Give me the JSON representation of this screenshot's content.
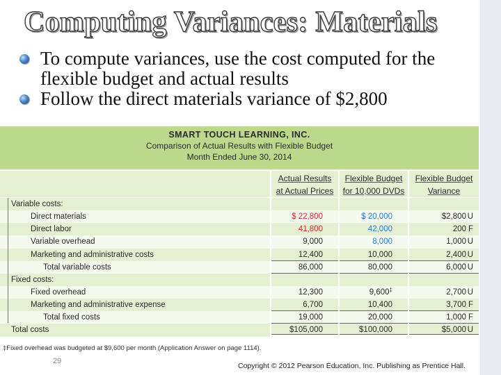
{
  "slide": {
    "title": "Computing Variances: Materials",
    "bullets": [
      "To compute variances, use the cost computed for the flexible budget and actual results",
      "Follow the direct materials variance of $2,800"
    ],
    "page_number": "29",
    "copyright": "Copyright © 2012 Pearson Education, Inc. Publishing as Prentice Hall."
  },
  "exhibit": {
    "company": "SMART TOUCH LEARNING, INC.",
    "report_title": "Comparison of Actual Results with Flexible Budget",
    "period": "Month Ended June 30, 2014",
    "columns": [
      {
        "line1": "Actual Results",
        "line2": "at Actual Prices"
      },
      {
        "line1": "Flexible Budget",
        "line2": "for 10,000 DVDs"
      },
      {
        "line1": "Flexible Budget",
        "line2": "Variance"
      }
    ],
    "rows": [
      {
        "label": "Variable costs:",
        "actual": "",
        "flex": "",
        "variance": "",
        "fu": ""
      },
      {
        "label": "Direct materials",
        "actual": "$ 22,800",
        "flex": "$ 20,000",
        "variance": "$2,800",
        "fu": "U"
      },
      {
        "label": "Direct labor",
        "actual": "41,800",
        "flex": "42,000",
        "variance": "200",
        "fu": "F"
      },
      {
        "label": "Variable overhead",
        "actual": "9,000",
        "flex": "8,000",
        "variance": "1,000",
        "fu": "U"
      },
      {
        "label": "Marketing and administrative costs",
        "actual": "12,400",
        "flex": "10,000",
        "variance": "2,400",
        "fu": "U"
      },
      {
        "label": "Total variable costs",
        "actual": "86,000",
        "flex": "80,000",
        "variance": "6,000",
        "fu": "U"
      },
      {
        "label": "Fixed costs:",
        "actual": "",
        "flex": "",
        "variance": "",
        "fu": ""
      },
      {
        "label": "Fixed overhead",
        "actual": "12,300",
        "flex": "9,600",
        "flex_mark": "‡",
        "variance": "2,700",
        "fu": "U"
      },
      {
        "label": "Marketing and administrative expense",
        "actual": "6,700",
        "flex": "10,400",
        "variance": "3,700",
        "fu": "F"
      },
      {
        "label": "Total fixed costs",
        "actual": "19,000",
        "flex": "20,000",
        "variance": "1,000",
        "fu": "F"
      },
      {
        "label": "Total costs",
        "actual": "$105,000",
        "flex": "$100,000",
        "variance": "$5,000",
        "fu": "U"
      }
    ],
    "footnote": "‡Fixed overhead was budgeted at $9,600 per month (Application Answer on page 1114).",
    "colors": {
      "header_bg": "#bcd88a",
      "actual_materials": "#d2302b",
      "flex_materials": "#2c7bd3"
    }
  }
}
